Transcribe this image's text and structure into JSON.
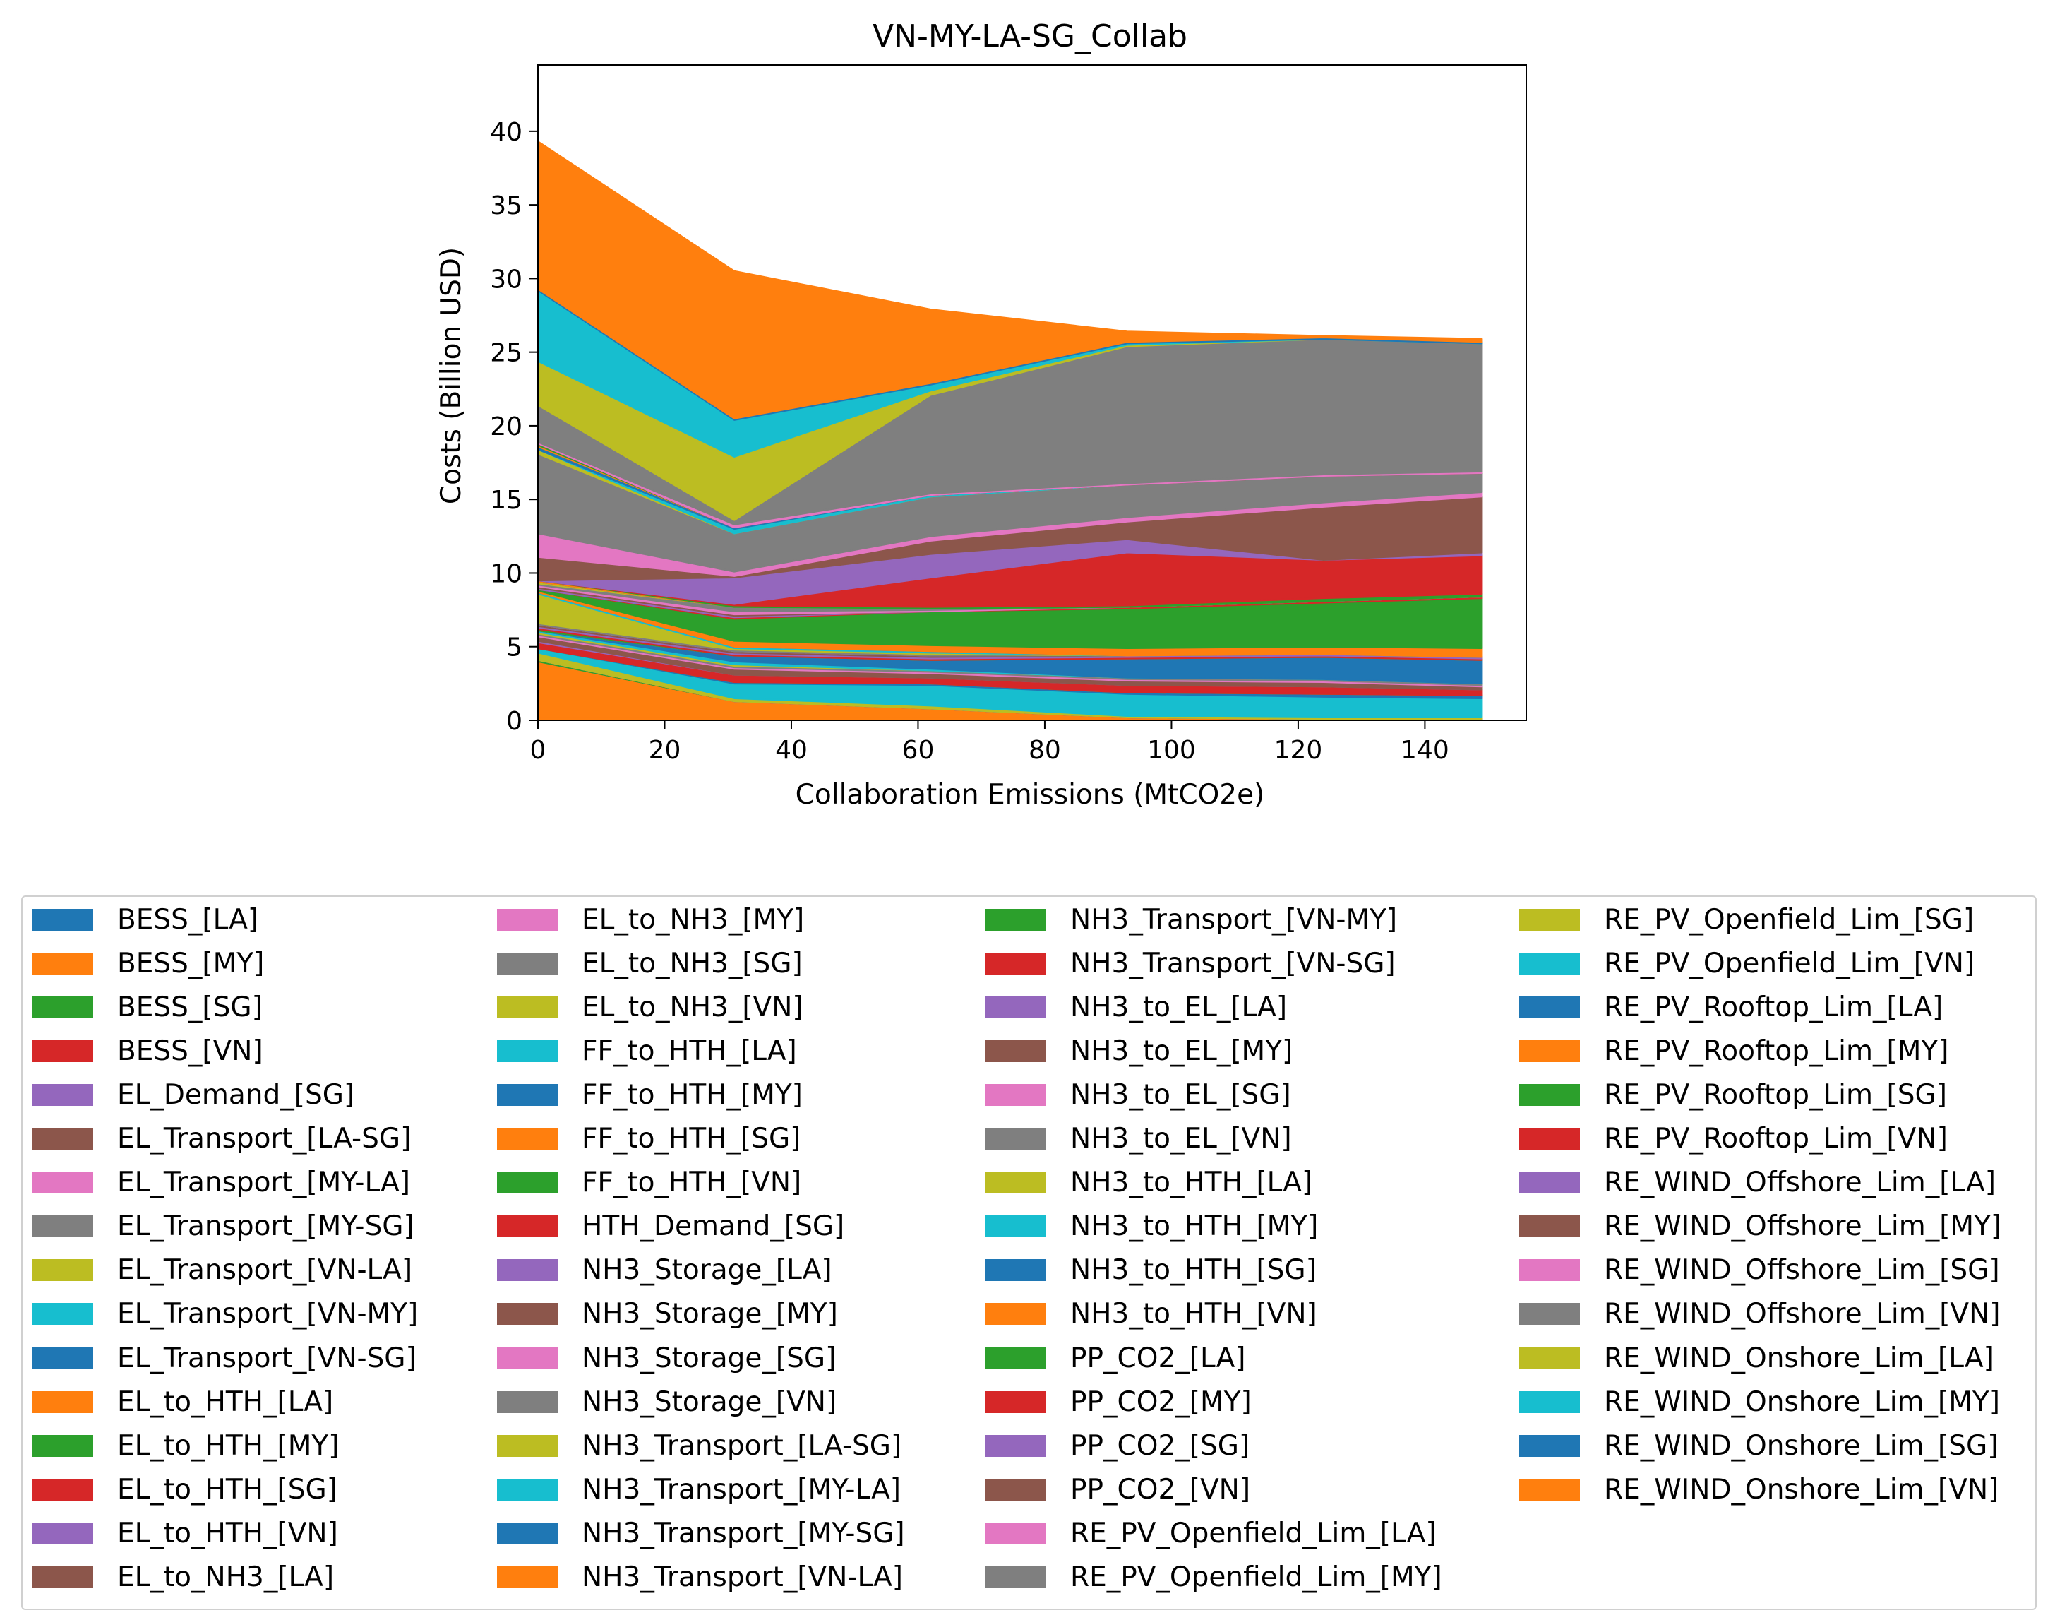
{
  "chart_data": {
    "type": "area",
    "title": "VN-MY-LA-SG_Collab",
    "xlabel": "Collaboration Emissions (MtCO2e)",
    "ylabel": "Costs (Billion USD)",
    "xlim": [
      0,
      156
    ],
    "ylim": [
      0,
      44.5
    ],
    "xticks": [
      0,
      20,
      40,
      60,
      80,
      100,
      120,
      140
    ],
    "yticks": [
      0,
      5,
      10,
      15,
      20,
      25,
      30,
      35,
      40
    ],
    "x": [
      0,
      31,
      62,
      93,
      124,
      149
    ],
    "grid": false,
    "legend_placement": "below plot",
    "legend_columns": 4,
    "series": [
      {
        "name": "BESS_[LA]",
        "color": "#1f77b4",
        "values": [
          0.1,
          0.1,
          0.1,
          0.1,
          0.1,
          0.1
        ]
      },
      {
        "name": "BESS_[MY]",
        "color": "#ff7f0e",
        "values": [
          3.9,
          1.2,
          0.7,
          0.1,
          0.0,
          0.0
        ]
      },
      {
        "name": "BESS_[SG]",
        "color": "#2ca02c",
        "values": [
          0.1,
          0.0,
          0.0,
          0.0,
          0.0,
          0.0
        ]
      },
      {
        "name": "BESS_[VN]",
        "color": "#d62728",
        "values": [
          0.0,
          0.0,
          0.0,
          0.0,
          0.0,
          0.0
        ]
      },
      {
        "name": "EL_Demand_[SG]",
        "color": "#9467bd",
        "values": [
          0.0,
          0.0,
          0.0,
          0.0,
          0.0,
          0.0
        ]
      },
      {
        "name": "EL_Transport_[LA-SG]",
        "color": "#8c564b",
        "values": [
          0.0,
          0.0,
          0.0,
          0.0,
          0.0,
          0.0
        ]
      },
      {
        "name": "EL_Transport_[MY-LA]",
        "color": "#e377c2",
        "values": [
          0.0,
          0.0,
          0.0,
          0.0,
          0.0,
          0.0
        ]
      },
      {
        "name": "EL_Transport_[MY-SG]",
        "color": "#7f7f7f",
        "values": [
          0.0,
          0.0,
          0.0,
          0.0,
          0.0,
          0.0
        ]
      },
      {
        "name": "EL_Transport_[VN-LA]",
        "color": "#bcbd22",
        "values": [
          0.5,
          0.2,
          0.2,
          0.1,
          0.1,
          0.1
        ]
      },
      {
        "name": "EL_Transport_[VN-MY]",
        "color": "#17becf",
        "values": [
          0.3,
          1.0,
          1.4,
          1.5,
          1.4,
          1.3
        ]
      },
      {
        "name": "EL_Transport_[VN-SG]",
        "color": "#1f77b4",
        "values": [
          0.0,
          0.1,
          0.1,
          0.1,
          0.2,
          0.2
        ]
      },
      {
        "name": "EL_to_HTH_[LA]",
        "color": "#ff7f0e",
        "values": [
          0.0,
          0.0,
          0.0,
          0.0,
          0.0,
          0.0
        ]
      },
      {
        "name": "EL_to_HTH_[MY]",
        "color": "#2ca02c",
        "values": [
          0.0,
          0.0,
          0.0,
          0.0,
          0.0,
          0.0
        ]
      },
      {
        "name": "EL_to_HTH_[SG]",
        "color": "#d62728",
        "values": [
          0.4,
          0.5,
          0.4,
          0.5,
          0.5,
          0.4
        ]
      },
      {
        "name": "EL_to_HTH_[VN]",
        "color": "#9467bd",
        "values": [
          0.1,
          0.0,
          0.0,
          0.0,
          0.0,
          0.0
        ]
      },
      {
        "name": "EL_to_NH3_[LA]",
        "color": "#8c564b",
        "values": [
          0.3,
          0.4,
          0.3,
          0.3,
          0.3,
          0.2
        ]
      },
      {
        "name": "EL_to_NH3_[MY]",
        "color": "#e377c2",
        "values": [
          0.1,
          0.1,
          0.1,
          0.1,
          0.1,
          0.1
        ]
      },
      {
        "name": "EL_to_NH3_[SG]",
        "color": "#7f7f7f",
        "values": [
          0.1,
          0.1,
          0.1,
          0.1,
          0.1,
          0.1
        ]
      },
      {
        "name": "EL_to_NH3_[VN]",
        "color": "#bcbd22",
        "values": [
          0.1,
          0.1,
          0.0,
          0.0,
          0.0,
          0.0
        ]
      },
      {
        "name": "FF_to_HTH_[LA]",
        "color": "#17becf",
        "values": [
          0.1,
          0.2,
          0.1,
          0.0,
          0.0,
          0.0
        ]
      },
      {
        "name": "FF_to_HTH_[MY]",
        "color": "#1f77b4",
        "values": [
          0.0,
          0.4,
          0.6,
          1.3,
          1.5,
          1.6
        ]
      },
      {
        "name": "FF_to_HTH_[SG]",
        "color": "#ff7f0e",
        "values": [
          0.0,
          0.0,
          0.0,
          0.0,
          0.0,
          0.0
        ]
      },
      {
        "name": "FF_to_HTH_[VN]",
        "color": "#2ca02c",
        "values": [
          0.1,
          0.0,
          0.0,
          0.0,
          0.0,
          0.0
        ]
      },
      {
        "name": "HTH_Demand_[SG]",
        "color": "#d62728",
        "values": [
          0.1,
          0.1,
          0.1,
          0.1,
          0.1,
          0.1
        ]
      },
      {
        "name": "NH3_Storage_[LA]",
        "color": "#9467bd",
        "values": [
          0.1,
          0.1,
          0.1,
          0.1,
          0.1,
          0.1
        ]
      },
      {
        "name": "NH3_Storage_[MY]",
        "color": "#8c564b",
        "values": [
          0.1,
          0.1,
          0.1,
          0.0,
          0.0,
          0.0
        ]
      },
      {
        "name": "NH3_Storage_[SG]",
        "color": "#e377c2",
        "values": [
          0.0,
          0.0,
          0.0,
          0.0,
          0.0,
          0.0
        ]
      },
      {
        "name": "NH3_Storage_[VN]",
        "color": "#7f7f7f",
        "values": [
          0.1,
          0.1,
          0.1,
          0.0,
          0.0,
          0.0
        ]
      },
      {
        "name": "NH3_Transport_[LA-SG]",
        "color": "#bcbd22",
        "values": [
          2.0,
          0.1,
          0.1,
          0.0,
          0.0,
          0.0
        ]
      },
      {
        "name": "NH3_Transport_[MY-LA]",
        "color": "#17becf",
        "values": [
          0.1,
          0.1,
          0.1,
          0.0,
          0.0,
          0.0
        ]
      },
      {
        "name": "NH3_Transport_[MY-SG]",
        "color": "#1f77b4",
        "values": [
          0.0,
          0.0,
          0.0,
          0.0,
          0.0,
          0.0
        ]
      },
      {
        "name": "NH3_Transport_[VN-LA]",
        "color": "#ff7f0e",
        "values": [
          0.1,
          0.4,
          0.4,
          0.5,
          0.5,
          0.6
        ]
      },
      {
        "name": "NH3_Transport_[VN-MY]",
        "color": "#2ca02c",
        "values": [
          0.1,
          1.5,
          2.3,
          2.7,
          3.0,
          3.4
        ]
      },
      {
        "name": "NH3_Transport_[VN-SG]",
        "color": "#d62728",
        "values": [
          0.0,
          0.1,
          0.0,
          0.1,
          0.1,
          0.1
        ]
      },
      {
        "name": "NH3_to_EL_[LA]",
        "color": "#9467bd",
        "values": [
          0.1,
          0.1,
          0.0,
          0.0,
          0.0,
          0.0
        ]
      },
      {
        "name": "NH3_to_EL_[MY]",
        "color": "#8c564b",
        "values": [
          0.1,
          0.1,
          0.0,
          0.0,
          0.0,
          0.0
        ]
      },
      {
        "name": "NH3_to_EL_[SG]",
        "color": "#e377c2",
        "values": [
          0.1,
          0.2,
          0.1,
          0.0,
          0.0,
          0.0
        ]
      },
      {
        "name": "NH3_to_EL_[VN]",
        "color": "#7f7f7f",
        "values": [
          0.1,
          0.3,
          0.1,
          0.0,
          0.0,
          0.0
        ]
      },
      {
        "name": "NH3_to_HTH_[LA]",
        "color": "#bcbd22",
        "values": [
          0.1,
          0.0,
          0.0,
          0.0,
          0.0,
          0.0
        ]
      },
      {
        "name": "NH3_to_HTH_[MY]",
        "color": "#17becf",
        "values": [
          0.0,
          0.0,
          0.0,
          0.0,
          0.0,
          0.0
        ]
      },
      {
        "name": "NH3_to_HTH_[SG]",
        "color": "#1f77b4",
        "values": [
          0.0,
          0.0,
          0.0,
          0.0,
          0.0,
          0.0
        ]
      },
      {
        "name": "NH3_to_HTH_[VN]",
        "color": "#ff7f0e",
        "values": [
          0.1,
          0.0,
          0.0,
          0.0,
          0.0,
          0.0
        ]
      },
      {
        "name": "PP_CO2_[LA]",
        "color": "#2ca02c",
        "values": [
          0.0,
          0.1,
          0.1,
          0.1,
          0.2,
          0.2
        ]
      },
      {
        "name": "PP_CO2_[MY]",
        "color": "#d62728",
        "values": [
          0.0,
          0.1,
          2.0,
          3.6,
          2.6,
          2.6
        ]
      },
      {
        "name": "PP_CO2_[SG]",
        "color": "#9467bd",
        "values": [
          0.0,
          1.8,
          1.6,
          0.9,
          0.0,
          0.2
        ]
      },
      {
        "name": "PP_CO2_[VN]",
        "color": "#8c564b",
        "values": [
          1.6,
          0.1,
          0.9,
          1.2,
          3.6,
          3.8
        ]
      },
      {
        "name": "RE_PV_Openfield_Lim_[LA]",
        "color": "#e377c2",
        "values": [
          1.6,
          0.3,
          0.3,
          0.3,
          0.3,
          0.3
        ]
      },
      {
        "name": "RE_PV_Openfield_Lim_[MY]",
        "color": "#7f7f7f",
        "values": [
          5.4,
          2.6,
          2.7,
          2.2,
          1.8,
          1.3
        ]
      },
      {
        "name": "RE_PV_Openfield_Lim_[SG]",
        "color": "#bcbd22",
        "values": [
          0.3,
          0.0,
          0.0,
          0.0,
          0.0,
          0.0
        ]
      },
      {
        "name": "RE_PV_Openfield_Lim_[VN]",
        "color": "#17becf",
        "values": [
          0.0,
          0.3,
          0.1,
          0.0,
          0.0,
          0.0
        ]
      },
      {
        "name": "RE_PV_Rooftop_Lim_[LA]",
        "color": "#1f77b4",
        "values": [
          0.2,
          0.1,
          0.0,
          0.0,
          0.0,
          0.0
        ]
      },
      {
        "name": "RE_PV_Rooftop_Lim_[MY]",
        "color": "#ff7f0e",
        "values": [
          0.1,
          0.0,
          0.0,
          0.0,
          0.0,
          0.0
        ]
      },
      {
        "name": "RE_PV_Rooftop_Lim_[SG]",
        "color": "#2ca02c",
        "values": [
          0.1,
          0.0,
          0.0,
          0.0,
          0.0,
          0.0
        ]
      },
      {
        "name": "RE_PV_Rooftop_Lim_[VN]",
        "color": "#d62728",
        "values": [
          0.0,
          0.0,
          0.0,
          0.0,
          0.0,
          0.0
        ]
      },
      {
        "name": "RE_WIND_Offshore_Lim_[LA]",
        "color": "#9467bd",
        "values": [
          0.0,
          0.0,
          0.0,
          0.0,
          0.0,
          0.0
        ]
      },
      {
        "name": "RE_WIND_Offshore_Lim_[MY]",
        "color": "#8c564b",
        "values": [
          0.0,
          0.0,
          0.0,
          0.0,
          0.0,
          0.0
        ]
      },
      {
        "name": "RE_WIND_Offshore_Lim_[SG]",
        "color": "#e377c2",
        "values": [
          0.1,
          0.2,
          0.1,
          0.1,
          0.1,
          0.1
        ]
      },
      {
        "name": "RE_WIND_Offshore_Lim_[VN]",
        "color": "#7f7f7f",
        "values": [
          2.5,
          0.3,
          6.7,
          9.3,
          9.2,
          8.7
        ]
      },
      {
        "name": "RE_WIND_Onshore_Lim_[LA]",
        "color": "#bcbd22",
        "values": [
          3.0,
          4.3,
          0.3,
          0.1,
          0.0,
          0.0
        ]
      },
      {
        "name": "RE_WIND_Onshore_Lim_[MY]",
        "color": "#17becf",
        "values": [
          4.8,
          2.5,
          0.4,
          0.1,
          0.0,
          0.0
        ]
      },
      {
        "name": "RE_WIND_Onshore_Lim_[SG]",
        "color": "#1f77b4",
        "values": [
          0.1,
          0.1,
          0.1,
          0.1,
          0.1,
          0.1
        ]
      },
      {
        "name": "RE_WIND_Onshore_Lim_[VN]",
        "color": "#ff7f0e",
        "values": [
          10.0,
          10.0,
          5.0,
          0.7,
          0.1,
          0.2
        ]
      }
    ]
  }
}
